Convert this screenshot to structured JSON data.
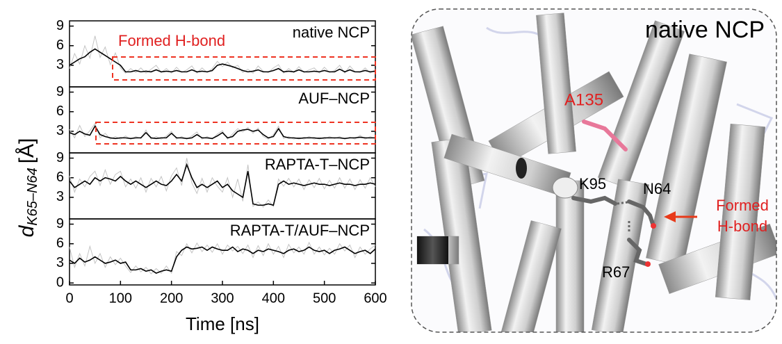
{
  "chart_data": [
    {
      "type": "line",
      "name": "native NCP",
      "annotation": "Formed H-bond",
      "ylabel": {
        "symbol": "d",
        "subscript": "K65–N64",
        "unit": "[Å]"
      },
      "xlim": [
        0,
        600
      ],
      "ylim": [
        -0.3,
        9.8
      ],
      "yticks": [
        3,
        6,
        9
      ],
      "x": [
        0,
        10,
        20,
        30,
        40,
        50,
        60,
        70,
        80,
        90,
        100,
        110,
        120,
        130,
        140,
        150,
        160,
        170,
        180,
        190,
        200,
        210,
        220,
        230,
        240,
        250,
        260,
        270,
        280,
        290,
        300,
        310,
        320,
        330,
        340,
        350,
        360,
        370,
        380,
        390,
        400,
        410,
        420,
        430,
        440,
        450,
        460,
        470,
        480,
        490,
        500,
        510,
        520,
        530,
        540,
        550,
        560,
        570,
        580,
        590,
        600
      ],
      "series": [
        {
          "color": "#c4c4c4",
          "values": [
            2.5,
            4.8,
            3.2,
            6.0,
            4.1,
            7.5,
            4.2,
            5.8,
            3.1,
            4.9,
            2.6,
            1.8,
            2.5,
            1.9,
            2.6,
            1.8,
            2.4,
            3.0,
            1.9,
            2.5,
            1.8,
            2.7,
            1.9,
            2.3,
            2.9,
            1.8,
            2.6,
            1.9,
            2.5,
            3.6,
            2.8,
            3.5,
            2.6,
            3.0,
            1.9,
            2.4,
            1.8,
            2.9,
            2.1,
            1.9,
            2.6,
            3.1,
            1.8,
            2.5,
            1.9,
            2.8,
            1.9,
            2.3,
            2.6,
            1.8,
            2.7,
            1.9,
            2.2,
            3.0,
            1.8,
            2.9,
            2.0,
            1.9,
            2.6,
            1.8,
            2.4
          ]
        },
        {
          "color": "#000000",
          "values": [
            3.0,
            3.5,
            4.0,
            4.3,
            5.0,
            5.5,
            5.0,
            4.5,
            4.0,
            3.5,
            3.0,
            2.0,
            2.0,
            2.2,
            2.0,
            2.1,
            2.0,
            2.3,
            2.0,
            2.1,
            2.0,
            2.2,
            2.0,
            2.0,
            2.3,
            2.0,
            2.1,
            2.0,
            2.2,
            3.0,
            3.2,
            3.0,
            2.8,
            2.5,
            2.2,
            2.0,
            2.1,
            2.3,
            2.0,
            2.0,
            2.2,
            2.5,
            2.0,
            2.1,
            2.0,
            2.3,
            2.0,
            2.0,
            2.1,
            2.0,
            2.2,
            2.0,
            2.0,
            2.4,
            2.0,
            2.3,
            2.0,
            2.0,
            2.2,
            2.0,
            2.1
          ]
        }
      ]
    },
    {
      "type": "line",
      "name": "AUF–NCP",
      "xlim": [
        0,
        600
      ],
      "ylim": [
        -0.3,
        9.8
      ],
      "yticks": [
        3,
        6,
        9
      ],
      "x": [
        0,
        10,
        20,
        30,
        40,
        50,
        60,
        70,
        80,
        90,
        100,
        110,
        120,
        130,
        140,
        150,
        160,
        170,
        180,
        190,
        200,
        210,
        220,
        230,
        240,
        250,
        260,
        270,
        280,
        290,
        300,
        310,
        320,
        330,
        340,
        350,
        360,
        370,
        380,
        390,
        400,
        410,
        420,
        430,
        440,
        450,
        460,
        470,
        480,
        490,
        500,
        510,
        520,
        530,
        540,
        550,
        560,
        570,
        580,
        590,
        600
      ],
      "series": [
        {
          "color": "#c4c4c4",
          "values": [
            3.3,
            2.0,
            3.9,
            2.2,
            3.1,
            4.2,
            2.0,
            2.7,
            1.8,
            2.2,
            1.8,
            2.3,
            1.8,
            2.2,
            1.9,
            3.2,
            1.8,
            2.2,
            1.8,
            2.3,
            3.0,
            1.8,
            2.2,
            1.8,
            2.3,
            2.9,
            1.8,
            2.2,
            1.8,
            2.6,
            3.1,
            1.8,
            2.6,
            3.4,
            2.9,
            3.6,
            2.7,
            3.5,
            2.2,
            1.8,
            2.5,
            3.8,
            1.9,
            2.2,
            1.8,
            2.1,
            1.8,
            2.2,
            1.8,
            2.1,
            1.8,
            2.2,
            1.9,
            2.2,
            1.8,
            2.1,
            1.8,
            2.4,
            1.8,
            2.2,
            1.9
          ]
        },
        {
          "color": "#000000",
          "values": [
            2.8,
            2.5,
            3.0,
            2.6,
            2.4,
            3.8,
            2.5,
            2.2,
            2.0,
            1.9,
            2.0,
            2.0,
            1.9,
            2.0,
            2.0,
            2.8,
            2.0,
            1.9,
            2.0,
            2.0,
            2.7,
            2.0,
            2.0,
            1.9,
            2.0,
            2.5,
            2.0,
            2.0,
            1.9,
            2.3,
            2.8,
            2.0,
            2.2,
            3.0,
            3.2,
            3.3,
            3.0,
            3.2,
            2.5,
            2.0,
            2.2,
            3.4,
            2.2,
            2.0,
            2.0,
            1.9,
            2.0,
            2.0,
            2.0,
            1.9,
            2.0,
            2.0,
            2.0,
            2.0,
            1.9,
            2.0,
            2.0,
            2.1,
            2.0,
            2.0,
            2.0
          ]
        }
      ]
    },
    {
      "type": "line",
      "name": "RAPTA-T–NCP",
      "xlim": [
        0,
        600
      ],
      "ylim": [
        -0.3,
        9.8
      ],
      "yticks": [
        3,
        6,
        9
      ],
      "x": [
        0,
        10,
        20,
        30,
        40,
        50,
        60,
        70,
        80,
        90,
        100,
        110,
        120,
        130,
        140,
        150,
        160,
        170,
        180,
        190,
        200,
        210,
        220,
        230,
        240,
        250,
        260,
        270,
        280,
        290,
        300,
        310,
        320,
        330,
        340,
        350,
        360,
        370,
        380,
        390,
        400,
        410,
        420,
        430,
        440,
        450,
        460,
        470,
        480,
        490,
        500,
        510,
        520,
        530,
        540,
        550,
        560,
        570,
        580,
        590,
        600
      ],
      "series": [
        {
          "color": "#c4c4c4",
          "values": [
            6.3,
            3.8,
            5.8,
            4.6,
            6.2,
            7.0,
            4.8,
            7.2,
            5.0,
            6.5,
            7.0,
            4.6,
            5.8,
            4.4,
            6.0,
            3.8,
            5.9,
            4.6,
            6.2,
            4.0,
            6.3,
            7.5,
            4.8,
            9.0,
            5.2,
            3.6,
            5.9,
            3.8,
            6.0,
            4.7,
            3.8,
            6.0,
            3.0,
            5.8,
            2.4,
            8.0,
            1.6,
            2.3,
            1.5,
            2.6,
            1.6,
            5.8,
            4.7,
            5.9,
            4.6,
            5.8,
            4.2,
            5.7,
            4.5,
            5.9,
            4.3,
            5.6,
            4.4,
            6.0,
            4.4,
            5.8,
            4.2,
            5.7,
            4.4,
            6.0,
            4.6
          ]
        },
        {
          "color": "#000000",
          "values": [
            5.5,
            4.5,
            5.0,
            5.5,
            5.0,
            6.0,
            5.5,
            6.0,
            5.8,
            5.5,
            6.2,
            5.5,
            5.0,
            5.5,
            5.0,
            4.5,
            5.0,
            5.5,
            5.0,
            4.8,
            5.5,
            6.5,
            5.5,
            8.0,
            6.0,
            4.5,
            5.0,
            4.5,
            5.0,
            5.5,
            4.5,
            5.0,
            4.0,
            3.5,
            3.0,
            7.0,
            2.0,
            1.8,
            1.8,
            2.0,
            1.8,
            5.0,
            5.5,
            5.0,
            5.2,
            5.0,
            4.8,
            5.0,
            5.2,
            5.0,
            5.0,
            4.8,
            5.0,
            5.2,
            5.0,
            5.0,
            4.8,
            5.0,
            5.0,
            5.2,
            5.0
          ]
        }
      ]
    },
    {
      "type": "line",
      "name": "RAPTA-T/AUF–NCP",
      "xlabel": "Time [ns]",
      "xlim": [
        0,
        600
      ],
      "xticks": [
        0,
        100,
        200,
        300,
        400,
        500,
        600
      ],
      "ylim": [
        -0.3,
        9.8
      ],
      "yticks": [
        0,
        3,
        6,
        9
      ],
      "x": [
        0,
        10,
        20,
        30,
        40,
        50,
        60,
        70,
        80,
        90,
        100,
        110,
        120,
        130,
        140,
        150,
        160,
        170,
        180,
        190,
        200,
        210,
        220,
        230,
        240,
        250,
        260,
        270,
        280,
        290,
        300,
        310,
        320,
        330,
        340,
        350,
        360,
        370,
        380,
        390,
        400,
        410,
        420,
        430,
        440,
        450,
        460,
        470,
        480,
        490,
        500,
        510,
        520,
        530,
        540,
        550,
        560,
        570,
        580,
        590,
        600
      ],
      "series": [
        {
          "color": "#c4c4c4",
          "values": [
            5.5,
            2.4,
            4.5,
            2.6,
            5.6,
            3.0,
            4.5,
            2.4,
            4.0,
            2.8,
            3.8,
            2.6,
            1.6,
            2.6,
            1.7,
            2.4,
            1.4,
            2.2,
            1.5,
            2.6,
            1.5,
            4.8,
            4.2,
            6.0,
            4.6,
            6.1,
            4.8,
            5.8,
            4.7,
            6.0,
            4.4,
            5.8,
            4.9,
            5.6,
            4.5,
            5.8,
            3.9,
            5.7,
            4.2,
            6.0,
            4.4,
            5.6,
            3.9,
            5.9,
            4.6,
            5.5,
            4.4,
            6.2,
            4.4,
            5.5,
            4.3,
            5.3,
            4.4,
            6.0,
            4.9,
            5.8,
            3.9,
            5.5,
            4.4,
            5.2,
            5.8
          ]
        },
        {
          "color": "#000000",
          "values": [
            3.5,
            3.0,
            3.8,
            3.2,
            3.5,
            4.0,
            3.5,
            3.0,
            3.2,
            3.5,
            3.0,
            3.2,
            2.0,
            2.0,
            2.2,
            1.8,
            2.0,
            1.5,
            1.8,
            2.0,
            1.8,
            4.0,
            5.0,
            5.5,
            5.2,
            5.3,
            5.5,
            5.0,
            5.5,
            5.2,
            5.0,
            5.0,
            5.5,
            4.8,
            5.2,
            5.0,
            4.5,
            5.0,
            4.8,
            5.2,
            5.0,
            4.8,
            4.5,
            5.0,
            5.2,
            4.8,
            5.0,
            5.5,
            5.0,
            4.8,
            5.0,
            4.5,
            5.0,
            5.2,
            5.5,
            5.0,
            4.5,
            4.8,
            5.0,
            4.5,
            5.2
          ]
        }
      ]
    }
  ],
  "image": {
    "title": "native NCP",
    "labels": [
      "A135",
      "K95",
      "N64",
      "R67"
    ],
    "annotation": [
      "Formed",
      "H-bond"
    ]
  }
}
